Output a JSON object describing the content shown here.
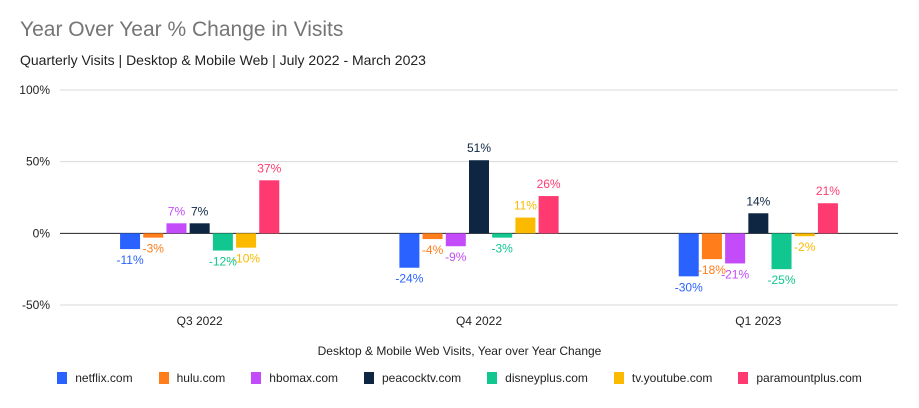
{
  "header": {
    "title": "Year Over Year % Change in Visits",
    "subtitle": "Quarterly Visits | Desktop & Mobile Web | July 2022 - March 2023"
  },
  "chart_data": {
    "type": "bar",
    "title": "Year Over Year % Change in Visits",
    "subtitle": "Quarterly Visits | Desktop & Mobile Web | July 2022 - March 2023",
    "xlabel": "Desktop & Mobile Web Visits, Year over Year Change",
    "ylabel": "",
    "ylim": [
      -50,
      100
    ],
    "yticks": [
      -50,
      0,
      50,
      100
    ],
    "ytick_labels": [
      "-50%",
      "0%",
      "50%",
      "100%"
    ],
    "grid": true,
    "legend_position": "bottom",
    "categories": [
      "Q3 2022",
      "Q4 2022",
      "Q1 2023"
    ],
    "series": [
      {
        "name": "netflix.com",
        "color": "#2962ff",
        "values": [
          -11,
          -24,
          -30
        ],
        "labels": [
          "-11%",
          "-24%",
          "-30%"
        ]
      },
      {
        "name": "hulu.com",
        "color": "#ff7d1a",
        "values": [
          -3,
          -4,
          -18
        ],
        "labels": [
          "-3%",
          "-4%",
          "-18%"
        ]
      },
      {
        "name": "hbomax.com",
        "color": "#c34bfa",
        "values": [
          7,
          -9,
          -21
        ],
        "labels": [
          "7%",
          "-9%",
          "-21%"
        ]
      },
      {
        "name": "peacocktv.com",
        "color": "#0e2641",
        "values": [
          7,
          51,
          14
        ],
        "labels": [
          "7%",
          "51%",
          "14%"
        ]
      },
      {
        "name": "disneyplus.com",
        "color": "#11c68f",
        "values": [
          -12,
          -3,
          -25
        ],
        "labels": [
          "-12%",
          "-3%",
          "-25%"
        ]
      },
      {
        "name": "tv.youtube.com",
        "color": "#fbba00",
        "values": [
          -10,
          11,
          -2
        ],
        "labels": [
          "-10%",
          "11%",
          "-2%"
        ]
      },
      {
        "name": "paramountplus.com",
        "color": "#fe3a70",
        "values": [
          37,
          26,
          21
        ],
        "labels": [
          "37%",
          "26%",
          "21%"
        ]
      }
    ]
  }
}
